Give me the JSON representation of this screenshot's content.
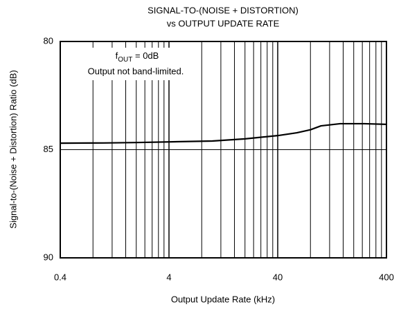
{
  "chart_data": {
    "type": "line",
    "title": [
      "SIGNAL-TO-(NOISE + DISTORTION)",
      "vs OUTPUT UPDATE RATE"
    ],
    "xlabel": "Output Update Rate (kHz)",
    "ylabel": "Signal-to-(Noise + Distortion) Ratio (dB)",
    "annotation": {
      "symbol": "f",
      "subscript": "OUT",
      "text": " = 0dB"
    },
    "note": "Output not band-limited.",
    "x": [
      0.4,
      1,
      2,
      4,
      10,
      20,
      40,
      60,
      80,
      100,
      150,
      250,
      400
    ],
    "series": [
      {
        "name": "SINAD",
        "color": "#000000",
        "values": [
          84.7,
          84.69,
          84.67,
          84.64,
          84.6,
          84.5,
          84.35,
          84.22,
          84.08,
          83.9,
          83.8,
          83.8,
          83.83
        ]
      }
    ],
    "xscale": "log",
    "xlim": [
      0.4,
      400
    ],
    "xticks": [
      0.4,
      4,
      40,
      400
    ],
    "xminor_ticks": [
      0.8,
      1.2,
      1.6,
      2.0,
      2.4,
      2.8,
      3.2,
      3.6,
      8,
      12,
      16,
      20,
      24,
      28,
      32,
      36,
      80,
      120,
      160,
      200,
      240,
      280,
      320,
      360
    ],
    "ylim": [
      90,
      80
    ],
    "yticks": [
      80,
      85,
      90
    ],
    "grid": true
  }
}
